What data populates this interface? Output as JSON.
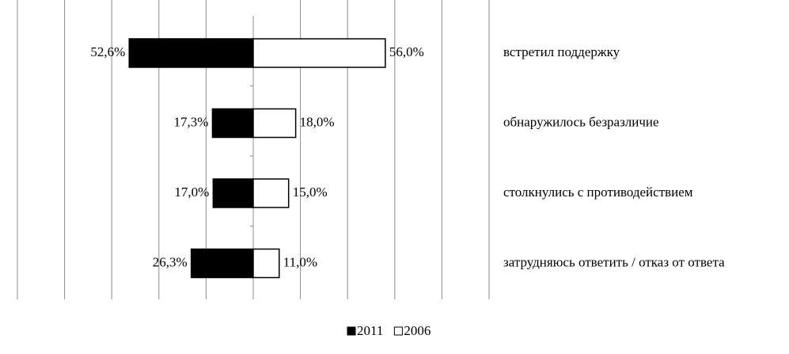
{
  "chart_data": {
    "type": "diverging-bar",
    "categories": [
      "встретил поддержку",
      "обнаружилось безразличие",
      "столкнулись с противодействием",
      "затрудняюсь ответить / отказ от ответа"
    ],
    "series": [
      {
        "name": "2011",
        "color": "#000000",
        "side": "left",
        "values": [
          52.6,
          17.3,
          17.0,
          26.3
        ],
        "value_labels": [
          "52,6%",
          "17,3%",
          "17,0%",
          "26,3%"
        ]
      },
      {
        "name": "2006",
        "color": "#ffffff",
        "side": "right",
        "values": [
          56.0,
          18.0,
          15.0,
          11.0
        ],
        "value_labels": [
          "56,0%",
          "18,0%",
          "15,0%",
          "11,0%"
        ]
      }
    ],
    "xlim": [
      0,
      100
    ],
    "xticks": [
      0,
      20,
      40,
      60,
      80,
      100
    ],
    "grid": true,
    "legend": "bottom"
  }
}
